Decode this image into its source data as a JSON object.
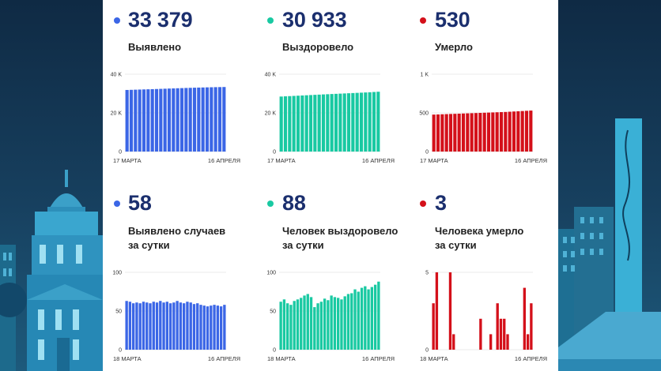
{
  "colors": {
    "blue": "#3b66e6",
    "green": "#19c9a2",
    "red": "#d4101a",
    "number": "#1b2f6e"
  },
  "top": [
    {
      "number": "33 379",
      "label": "Выявлено",
      "color": "#3b66e6"
    },
    {
      "number": "30 933",
      "label": "Выздоровело",
      "color": "#19c9a2"
    },
    {
      "number": "530",
      "label": "Умерло",
      "color": "#d4101a"
    }
  ],
  "bottom": [
    {
      "number": "58",
      "label_line1": "Выявлено случаев",
      "label_line2": "за сутки",
      "color": "#3b66e6"
    },
    {
      "number": "88",
      "label_line1": "Человек выздоровело",
      "label_line2": "за сутки",
      "color": "#19c9a2"
    },
    {
      "number": "3",
      "label_line1": "Человека умерло",
      "label_line2": "за сутки",
      "color": "#d4101a"
    }
  ],
  "chart_data": [
    {
      "type": "bar",
      "title": "Выявлено",
      "color": "#3b66e6",
      "ylim": [
        0,
        40000
      ],
      "yticks": [
        0,
        20000,
        40000
      ],
      "ytick_labels": [
        "0",
        "20 K",
        "40 K"
      ],
      "x_start": "17 МАРТА",
      "x_end": "16 АПРЕЛЯ",
      "values": [
        31850,
        31920,
        31990,
        32060,
        32130,
        32200,
        32270,
        32340,
        32420,
        32500,
        32580,
        32660,
        32740,
        32810,
        32880,
        32950,
        33020,
        33080,
        33140,
        33200,
        33250,
        33300,
        33340,
        33379
      ]
    },
    {
      "type": "bar",
      "title": "Выздоровело",
      "color": "#19c9a2",
      "ylim": [
        0,
        40000
      ],
      "yticks": [
        0,
        20000,
        40000
      ],
      "ytick_labels": [
        "0",
        "20 K",
        "40 K"
      ],
      "x_start": "17 МАРТА",
      "x_end": "16 АПРЕЛЯ",
      "values": [
        28450,
        28560,
        28670,
        28780,
        28890,
        29000,
        29110,
        29220,
        29330,
        29440,
        29550,
        29650,
        29750,
        29850,
        29950,
        30050,
        30150,
        30250,
        30350,
        30450,
        30560,
        30670,
        30800,
        30933
      ]
    },
    {
      "type": "bar",
      "title": "Умерло",
      "color": "#d4101a",
      "ylim": [
        0,
        1000
      ],
      "yticks": [
        0,
        500,
        1000
      ],
      "ytick_labels": [
        "0",
        "500",
        "1 K"
      ],
      "x_start": "17 МАРТА",
      "x_end": "16 АПРЕЛЯ",
      "values": [
        478,
        480,
        482,
        484,
        486,
        488,
        490,
        492,
        494,
        496,
        498,
        500,
        502,
        504,
        506,
        508,
        510,
        512,
        515,
        518,
        521,
        524,
        527,
        530
      ]
    },
    {
      "type": "bar",
      "title": "Выявлено случаев за сутки",
      "color": "#3b66e6",
      "ylim": [
        0,
        100
      ],
      "yticks": [
        0,
        50,
        100
      ],
      "ytick_labels": [
        "0",
        "50",
        "100"
      ],
      "x_start": "18 МАРТА",
      "x_end": "16 АПРЕЛЯ",
      "values": [
        63,
        62,
        60,
        61,
        60,
        62,
        61,
        60,
        62,
        61,
        63,
        61,
        62,
        60,
        61,
        63,
        61,
        60,
        62,
        61,
        59,
        60,
        58,
        57,
        56,
        57,
        58,
        57,
        56,
        58
      ]
    },
    {
      "type": "bar",
      "title": "Человек выздоровело за сутки",
      "color": "#19c9a2",
      "ylim": [
        0,
        100
      ],
      "yticks": [
        0,
        50,
        100
      ],
      "ytick_labels": [
        "0",
        "50",
        "100"
      ],
      "x_start": "18 МАРТА",
      "x_end": "16 АПРЕЛЯ",
      "values": [
        62,
        65,
        60,
        58,
        63,
        65,
        67,
        70,
        72,
        68,
        55,
        60,
        62,
        66,
        64,
        70,
        68,
        67,
        65,
        69,
        72,
        73,
        78,
        75,
        80,
        82,
        78,
        81,
        84,
        88
      ]
    },
    {
      "type": "bar",
      "title": "Человека умерло за сутки",
      "color": "#d4101a",
      "ylim": [
        0,
        5
      ],
      "yticks": [
        0,
        5
      ],
      "ytick_labels": [
        "0",
        "5"
      ],
      "x_start": "18 МАРТА",
      "x_end": "16 АПРЕЛЯ",
      "values": [
        3,
        5,
        0,
        0,
        0,
        5,
        1,
        0,
        0,
        0,
        0,
        0,
        0,
        0,
        2,
        0,
        0,
        1,
        0,
        3,
        2,
        2,
        1,
        0,
        0,
        0,
        0,
        4,
        1,
        3
      ]
    }
  ]
}
